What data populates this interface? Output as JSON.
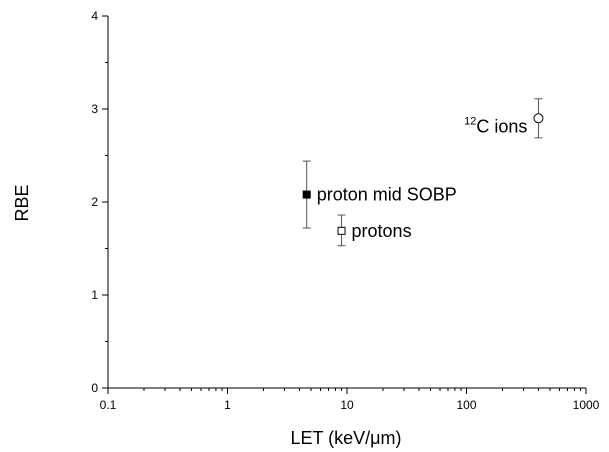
{
  "chart_data": {
    "type": "scatter",
    "title": "",
    "xlabel": "LET (keV/μm)",
    "ylabel": "RBE",
    "xscale": "log",
    "xlim": [
      0.1,
      1000
    ],
    "ylim": [
      0,
      4
    ],
    "xticks": [
      0.1,
      1,
      10,
      100,
      1000
    ],
    "xtick_labels": [
      "0.1",
      "1",
      "10",
      "100",
      "1000"
    ],
    "yticks": [
      0,
      1,
      2,
      3,
      4
    ],
    "ytick_labels": [
      "0",
      "1",
      "2",
      "3",
      "4"
    ],
    "grid": false,
    "points": [
      {
        "x": 4.6,
        "y": 2.08,
        "yerr_low": 1.72,
        "yerr_high": 2.44,
        "marker": "filled-square",
        "label": "proton mid SOBP"
      },
      {
        "x": 9.0,
        "y": 1.69,
        "yerr_low": 1.53,
        "yerr_high": 1.86,
        "marker": "open-square",
        "label": "protons"
      },
      {
        "x": 400,
        "y": 2.9,
        "yerr_low": 2.69,
        "yerr_high": 3.11,
        "marker": "open-circle",
        "label_sup": "12",
        "label": "C ions"
      }
    ]
  }
}
